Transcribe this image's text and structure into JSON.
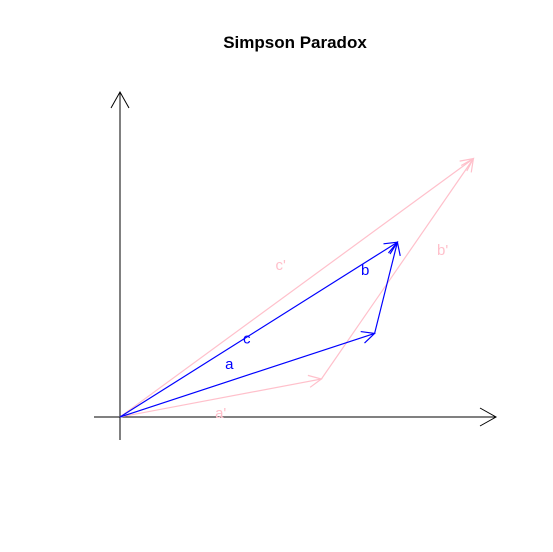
{
  "title": "Simpson Paradox",
  "colors": {
    "axis": "#000000",
    "primary": "#0000ff",
    "faded": "#ffc0cb"
  },
  "vectors": [
    {
      "id": "a-prime",
      "label": "a'",
      "from": [
        0,
        0
      ],
      "to": [
        5.3,
        1.0
      ],
      "color": "faded"
    },
    {
      "id": "b-prime",
      "label": "b'",
      "from": [
        5.3,
        1.0
      ],
      "to": [
        9.3,
        6.8
      ],
      "color": "faded"
    },
    {
      "id": "c-prime",
      "label": "c'",
      "from": [
        0,
        0
      ],
      "to": [
        9.3,
        6.8
      ],
      "color": "faded"
    },
    {
      "id": "a",
      "label": "a",
      "from": [
        0,
        0
      ],
      "to": [
        6.7,
        2.2
      ],
      "color": "primary"
    },
    {
      "id": "b",
      "label": "b",
      "from": [
        6.7,
        2.2
      ],
      "to": [
        7.3,
        4.6
      ],
      "color": "primary"
    },
    {
      "id": "c",
      "label": "c",
      "from": [
        0,
        0
      ],
      "to": [
        7.3,
        4.6
      ],
      "color": "primary"
    }
  ]
}
